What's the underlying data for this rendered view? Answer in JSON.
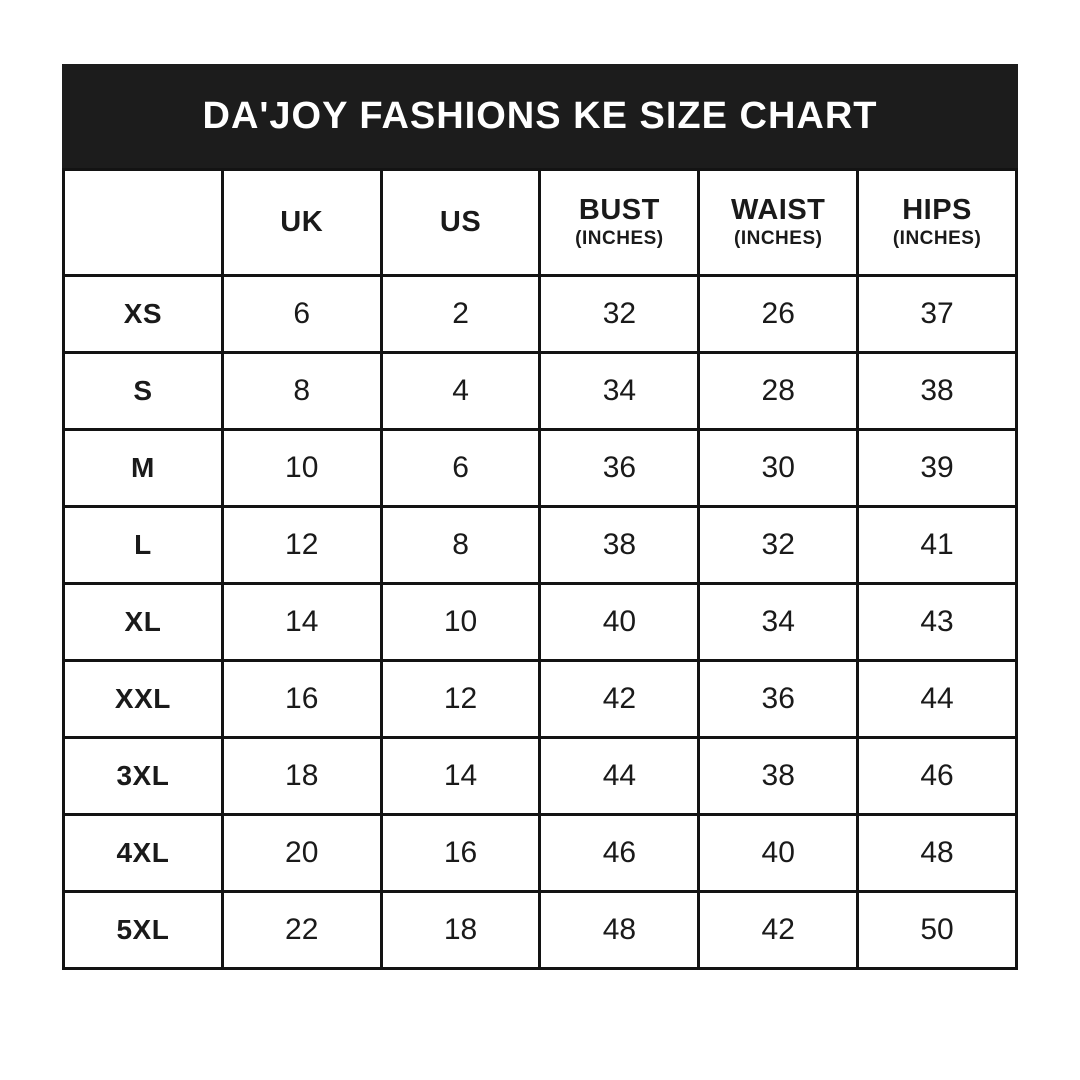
{
  "banner": {
    "title": "DA'JOY FASHIONS KE SIZE CHART"
  },
  "chart_data": {
    "type": "table",
    "title": "DA'JOY FASHIONS KE SIZE CHART",
    "columns": [
      {
        "label": "",
        "sub": ""
      },
      {
        "label": "UK",
        "sub": ""
      },
      {
        "label": "US",
        "sub": ""
      },
      {
        "label": "BUST",
        "sub": "(INCHES)"
      },
      {
        "label": "WAIST",
        "sub": "(INCHES)"
      },
      {
        "label": "HIPS",
        "sub": "(INCHES)"
      }
    ],
    "rows": [
      {
        "cells": [
          "XS",
          "6",
          "2",
          "32",
          "26",
          "37"
        ]
      },
      {
        "cells": [
          "S",
          "8",
          "4",
          "34",
          "28",
          "38"
        ]
      },
      {
        "cells": [
          "M",
          "10",
          "6",
          "36",
          "30",
          "39"
        ]
      },
      {
        "cells": [
          "L",
          "12",
          "8",
          "38",
          "32",
          "41"
        ]
      },
      {
        "cells": [
          "XL",
          "14",
          "10",
          "40",
          "34",
          "43"
        ]
      },
      {
        "cells": [
          "XXL",
          "16",
          "12",
          "42",
          "36",
          "44"
        ]
      },
      {
        "cells": [
          "3XL",
          "18",
          "14",
          "44",
          "38",
          "46"
        ]
      },
      {
        "cells": [
          "4XL",
          "20",
          "16",
          "46",
          "40",
          "48"
        ]
      },
      {
        "cells": [
          "5XL",
          "22",
          "18",
          "48",
          "42",
          "50"
        ]
      }
    ]
  },
  "colors": {
    "page_bg": "#ffffff",
    "banner_bg": "#1c1c1c",
    "banner_text": "#ffffff",
    "border": "#131313",
    "cell_text": "#1a1a1a"
  }
}
